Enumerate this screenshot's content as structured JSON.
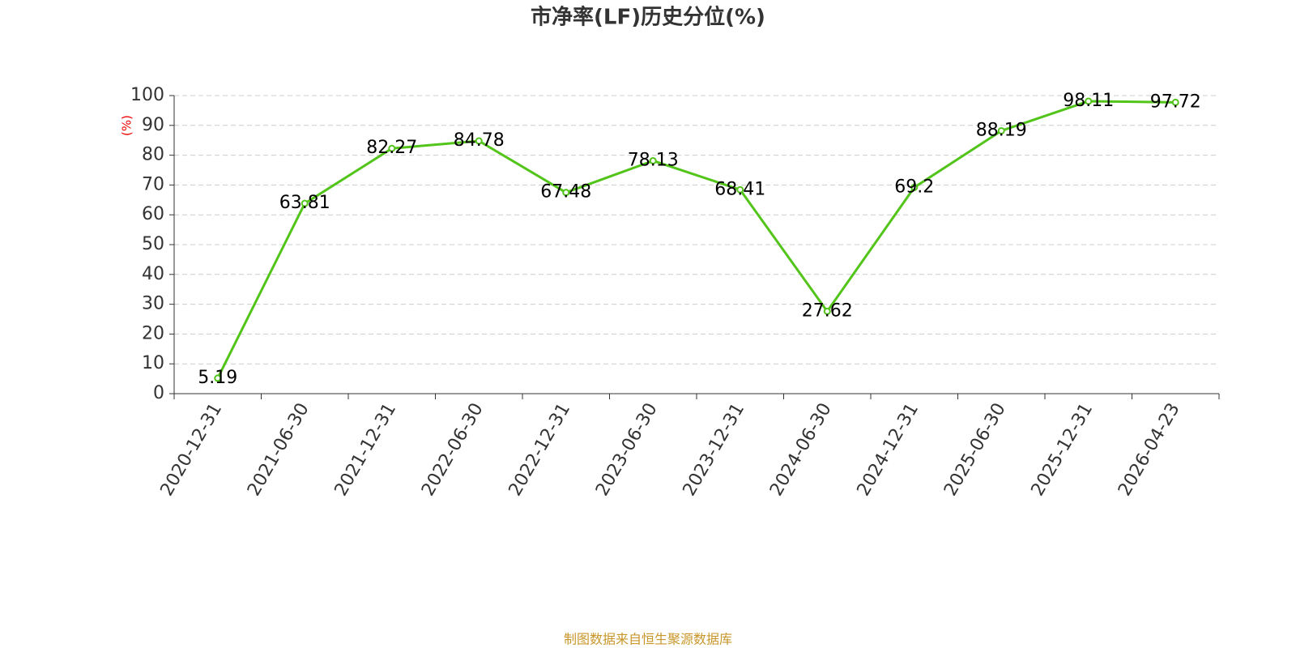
{
  "chart_data": {
    "type": "line",
    "title": "市净率(LF)历史分位(%)",
    "y_label": "(%)",
    "categories": [
      "2020-12-31",
      "2021-06-30",
      "2021-12-31",
      "2022-06-30",
      "2022-12-31",
      "2023-06-30",
      "2023-12-31",
      "2024-06-30",
      "2024-12-31",
      "2025-06-30",
      "2025-12-31",
      "2026-04-23"
    ],
    "values": [
      5.19,
      63.81,
      82.27,
      84.78,
      67.48,
      78.13,
      68.41,
      27.62,
      69.2,
      88.19,
      98.11,
      97.72
    ],
    "color": "#52c41a",
    "ylim": [
      0,
      100
    ],
    "yticks": [
      0,
      10,
      20,
      30,
      40,
      50,
      60,
      70,
      80,
      90,
      100
    ],
    "grid": true,
    "source": "制图数据来自恒生聚源数据库"
  }
}
